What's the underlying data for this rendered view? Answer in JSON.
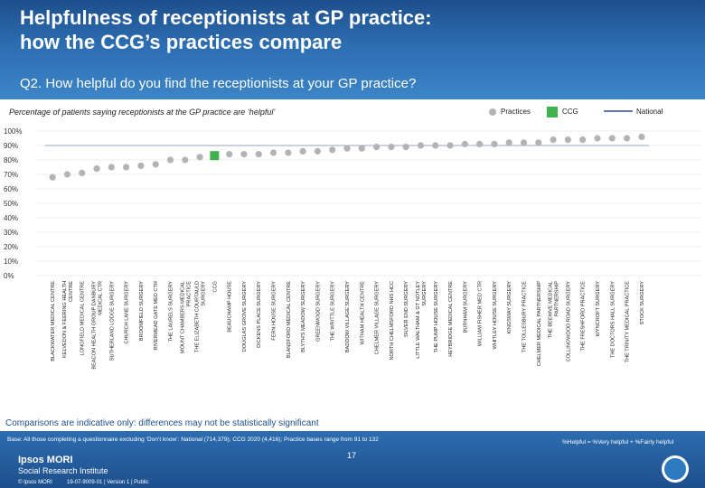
{
  "header": {
    "title_line1": "Helpfulness of receptionists at GP practice:",
    "title_line2": "how the CCG’s practices compare",
    "question": "Q2. How helpful do you find the receptionists at your GP practice?"
  },
  "legend": {
    "practices_label": "Practices",
    "ccg_label": "CCG",
    "national_label": "National"
  },
  "colors": {
    "header": "#2c6db0",
    "practice_marker": "#b3b3b3",
    "ccg_marker": "#41b34d",
    "national_line": "#2f4a88",
    "grid": "#dcdcdc"
  },
  "chart_data": {
    "type": "scatter",
    "title": "Percentage of patients saying receptionists at the GP practice are ‘helpful’",
    "xlabel": "",
    "ylabel": "",
    "ylim": [
      0,
      100
    ],
    "yticks": [
      "0%",
      "10%",
      "20%",
      "30%",
      "40%",
      "50%",
      "60%",
      "70%",
      "80%",
      "90%",
      "100%"
    ],
    "ytick_values": [
      0,
      10,
      20,
      30,
      40,
      50,
      60,
      70,
      80,
      90,
      100
    ],
    "categories": [
      "BLACKWATER MEDICAL CENTRE",
      "KELVEDON & FEERING HEALTH CENTRE",
      "LONGFIELD MEDICAL CENTRE",
      "BEACON HEALTH GROUP DANBURY MEDICAL CTR",
      "SUTHERLAND LODGE SURGERY",
      "CHURCH LANE SURGERY",
      "BROOMFIELD SURGERY",
      "RIVERMEAD GATE MED CTR",
      "THE LAURELS SURGERY",
      "MOUNT CHAMBERS MEDICAL PRACTICE",
      "THE ELIZABETH COURTAULD SURGERY",
      "CCG",
      "BEAUCHAMP HOUSE",
      "DOUGLAS GROVE SURGERY",
      "DICKENS PLACE SURGERY",
      "FERN HOUSE SURGERY",
      "BLANDFORD MEDICAL CENTRE",
      "BLYTH'S MEADOW SURGERY",
      "GREENWOOD SURGERY",
      "THE WRITTLE SURGERY",
      "BADDOW VILLAGE SURGERY",
      "WITHAM HEALTH CENTRE",
      "CHELMER VILLAGE SURGERY",
      "NORTH CHELMSFORD NHS HCC",
      "SILVER END SURGERY",
      "LITTLE WALTHAM & GT NOTLEY SURGERY",
      "THE PUMP HOUSE SURGERY",
      "HEYBRIDGE MEDICAL CENTRE",
      "BURNHAM SURGERY",
      "WILLIAM FISHER MED CTR",
      "WHITLEY HOUSE SURGERY",
      "KINGSWAY SURGERY",
      "THE TOLLESBURY PRACTICE",
      "CHELMER MEDICAL PARTNERSHIP",
      "THE BEEHIVE MEDICAL PARTNERSHIP",
      "COLLINGWOOD ROAD SURGERY",
      "THE FRESHFORD PRACTICE",
      "WYNCROFT SURGERY",
      "THE DOCTORS HALL SURGERY",
      "THE TRINITY MEDICAL PRACTICE",
      "STOCK SURGERY"
    ],
    "values": [
      68,
      70,
      71,
      74,
      75,
      75,
      76,
      77,
      80,
      80,
      82,
      83,
      84,
      84,
      84,
      85,
      85,
      86,
      86,
      87,
      88,
      88,
      89,
      89,
      89,
      90,
      90,
      90,
      91,
      91,
      91,
      92,
      92,
      92,
      94,
      94,
      94,
      95,
      95,
      95,
      96
    ],
    "highlight_index": 11,
    "national_value": 90,
    "legend": [
      "Practices",
      "CCG",
      "National"
    ],
    "grid": true
  },
  "notes": {
    "comparisons": "Comparisons are indicative only: differences may not be statistically significant"
  },
  "footer": {
    "base": "Base: All those completing a questionnaire excluding ‘Don’t know’: National (714,379); CCG 2020 (4,416); Practice bases range from 91 to 132",
    "helpful_def": "%Helpful = %Very helpful + %Fairly helpful",
    "page": "17",
    "brand_line1": "Ipsos MORI",
    "brand_line2": "Social Research Institute",
    "copyright": "© Ipsos MORI",
    "job": "19-07-9009-01 | Version 1 | Public"
  }
}
